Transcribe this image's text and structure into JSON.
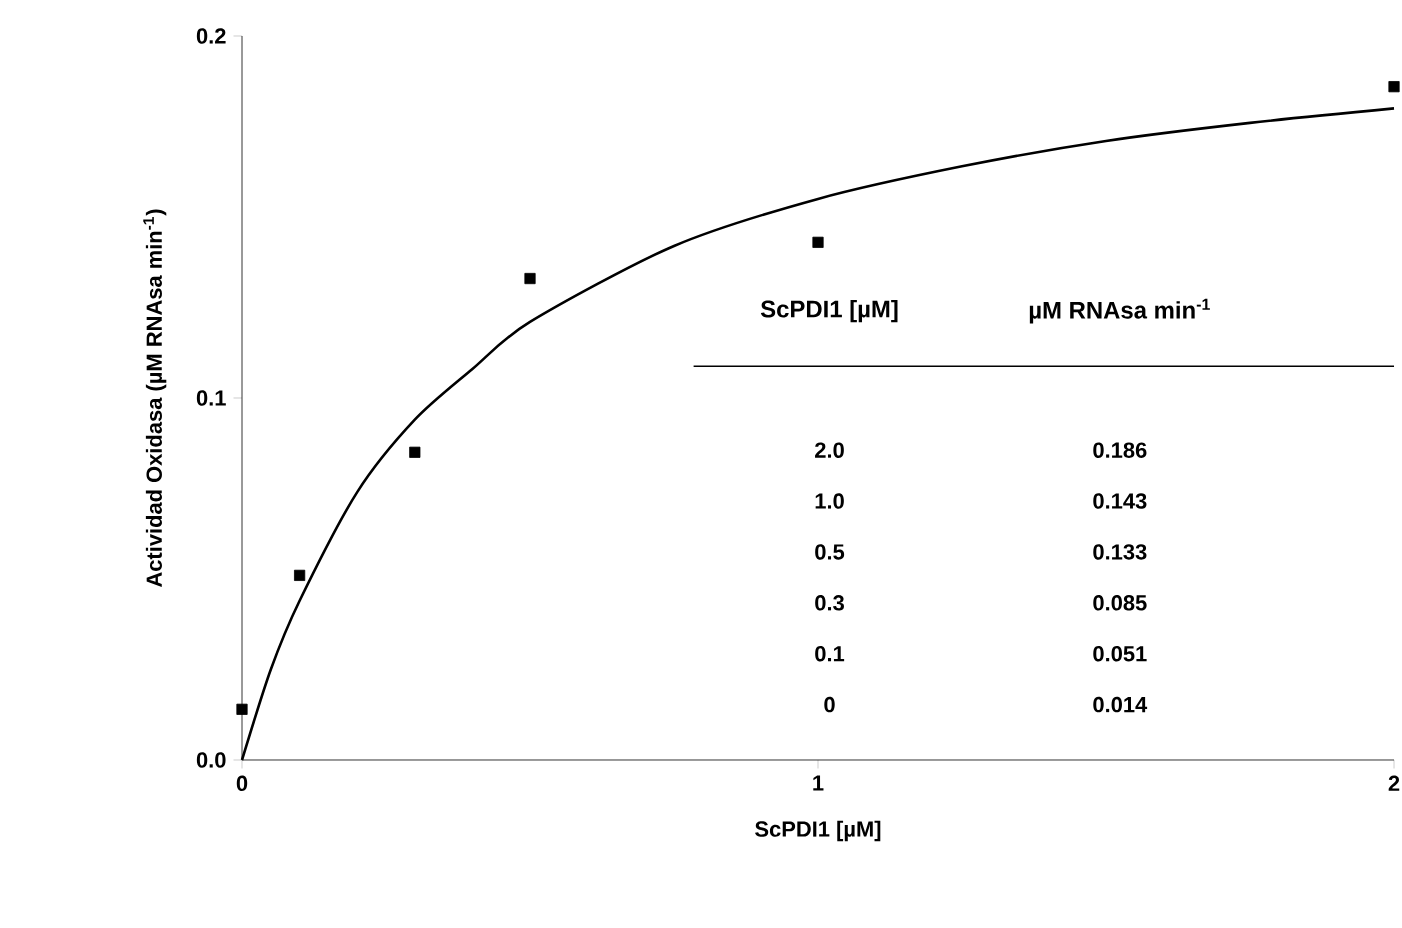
{
  "chart_data": {
    "type": "scatter",
    "xlabel": "ScPDI1 [µM]",
    "ylabel": "Actividad Oxidasa (µM RNAsa min$^{-1}$)",
    "xlim": [
      0,
      2
    ],
    "ylim": [
      0,
      0.2
    ],
    "xticks": [
      0,
      1,
      2
    ],
    "yticks": [
      {
        "value": 0,
        "label": "0.0"
      },
      {
        "value": 0.1,
        "label": "0.1"
      },
      {
        "value": 0.2,
        "label": "0.2"
      }
    ],
    "marker": "square",
    "grid": false,
    "annotations": [
      "ScPDI1 [µM]",
      "µM RNAsa min$^{-1}$",
      "2.0",
      "0.186",
      "1.0",
      "0.143",
      "0.5",
      "0.133",
      "0.3",
      "0.085",
      "0.1",
      "0.051",
      "0",
      "0.014"
    ],
    "series": [
      {
        "color": "#000000",
        "x": [
          0,
          0.1,
          0.3,
          0.5,
          1,
          2
        ],
        "values": [
          0.014,
          0.051,
          0.085,
          0.133,
          0.143,
          0.186
        ]
      },
      {
        "type": "line",
        "color": "#000000",
        "marker": "none",
        "x": [
          0,
          0.05,
          0.1,
          0.2,
          0.3,
          0.4,
          0.5,
          0.75,
          1,
          1.25,
          1.5,
          1.75,
          2
        ],
        "values": [
          0,
          0.025,
          0.044,
          0.074,
          0.094,
          0.108,
          0.121,
          0.142,
          0.155,
          0.164,
          0.171,
          0.176,
          0.18
        ]
      }
    ]
  }
}
